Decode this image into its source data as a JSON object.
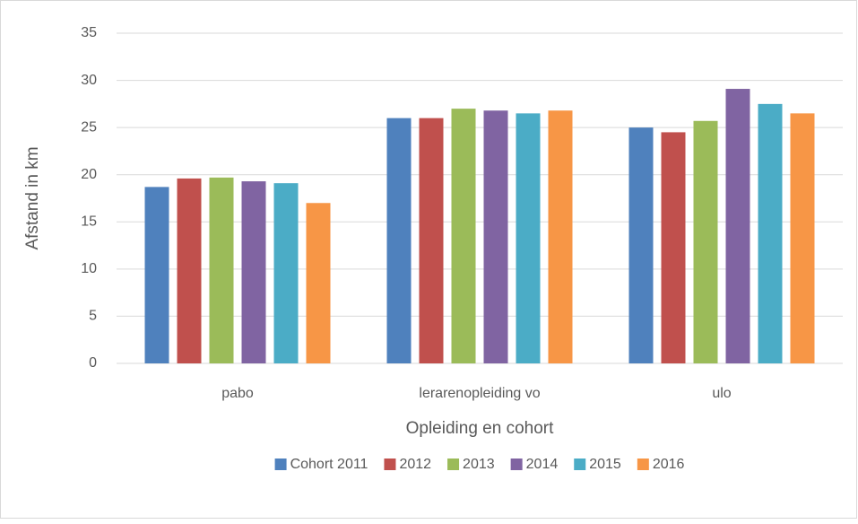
{
  "chart_data": {
    "type": "bar",
    "x_label": "Opleiding en cohort",
    "y_label": "Afstand in km",
    "categories": [
      "pabo",
      "lerarenopleiding vo",
      "ulo"
    ],
    "series": [
      {
        "name": "Cohort 2011",
        "color": "#4f81bd",
        "values": [
          18.7,
          26.0,
          25.0
        ]
      },
      {
        "name": "2012",
        "color": "#c0504d",
        "values": [
          19.6,
          26.0,
          24.5
        ]
      },
      {
        "name": "2013",
        "color": "#9bbb59",
        "values": [
          19.7,
          27.0,
          25.7
        ]
      },
      {
        "name": "2014",
        "color": "#8064a2",
        "values": [
          19.3,
          26.8,
          29.1
        ]
      },
      {
        "name": "2015",
        "color": "#4bacc6",
        "values": [
          19.1,
          26.5,
          27.5
        ]
      },
      {
        "name": "2016",
        "color": "#f79646",
        "values": [
          17.0,
          26.8,
          26.5
        ]
      }
    ],
    "ylim": [
      0,
      35
    ],
    "yticks": [
      0,
      5,
      10,
      15,
      20,
      25,
      30,
      35
    ],
    "grid": true,
    "legend": "bottom"
  }
}
